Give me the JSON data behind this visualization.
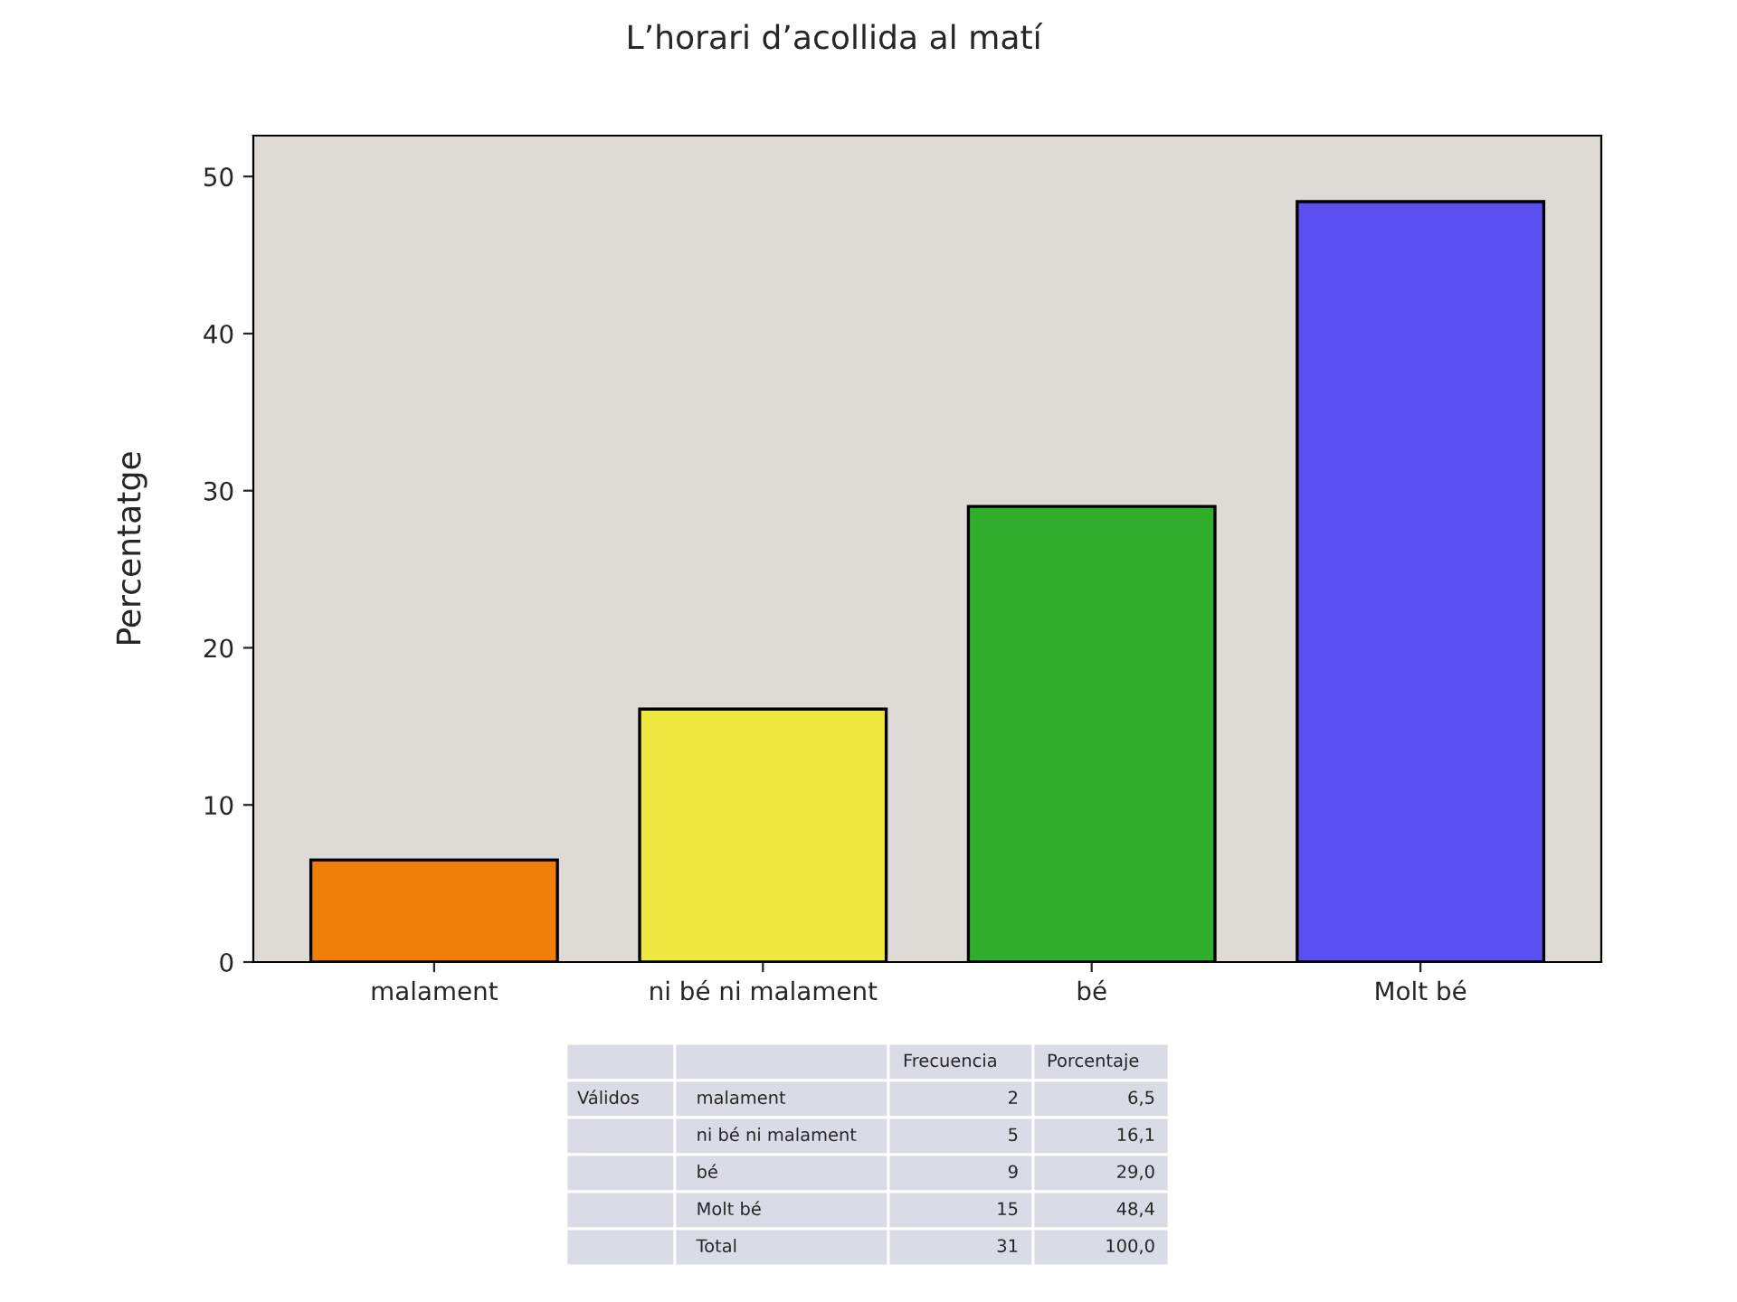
{
  "chart_data": {
    "type": "bar",
    "title": "L’horari d’acollida al matí",
    "ylabel": "Percentatge",
    "categories": [
      "malament",
      "ni bé ni malament",
      "bé",
      "Molt bé"
    ],
    "values": [
      6.5,
      16.1,
      29.0,
      48.4
    ],
    "colors": [
      "#f07f0a",
      "#eee840",
      "#2fae2c",
      "#5a4ff0"
    ],
    "annotations": [
      "Válidos",
      "Frecuencia",
      "Porcentaje",
      "Total",
      "2",
      "5",
      "9",
      "15",
      "31",
      "100,0",
      "6,5",
      "16,1",
      "29,0",
      "48,4"
    ],
    "ylim": [
      0,
      52.6
    ],
    "yticks": [
      0,
      10,
      20,
      30,
      40,
      50
    ],
    "grid": false,
    "legend": false
  }
}
